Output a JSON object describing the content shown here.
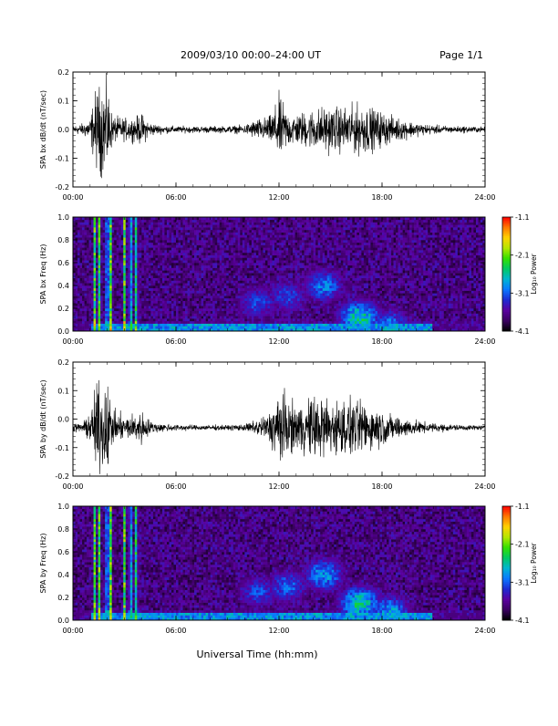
{
  "header": {
    "title": "2009/03/10   00:00–24:00 UT",
    "page_label": "Page 1/1"
  },
  "footer": {
    "xlabel": "Universal Time (hh:mm)"
  },
  "colors": {
    "trace": "#000000",
    "colorscale": [
      "#000000",
      "#3a0060",
      "#5a00a0",
      "#1e2ad2",
      "#0a78ff",
      "#00b4d2",
      "#00c864",
      "#34e000",
      "#b4e600",
      "#ffd200",
      "#ff7800",
      "#ff0000"
    ]
  },
  "chart_data": [
    {
      "type": "line",
      "title": "",
      "ylabel": "SPA bx dB/dt (nT/sec)",
      "xlabel": "",
      "xlim": [
        "00:00",
        "24:00"
      ],
      "ylim": [
        -0.2,
        0.2
      ],
      "x_ticks": [
        "00:00",
        "06:00",
        "12:00",
        "18:00",
        "24:00"
      ],
      "y_ticks": [
        "-0.2",
        "-0.1",
        "0.0",
        "0.1",
        "0.2"
      ],
      "grid": false,
      "series": [
        {
          "x_hours": [
            0.0,
            0.5,
            1.0,
            1.3,
            1.6,
            2.0,
            2.3,
            3.0,
            3.5,
            4.0,
            4.5,
            5.0,
            6.0,
            7.0,
            8.0,
            9.0,
            10.0,
            10.5,
            11.0,
            11.5,
            12.0,
            12.5,
            13.0,
            13.5,
            14.0,
            14.5,
            15.0,
            15.5,
            16.0,
            16.5,
            17.0,
            17.5,
            18.0,
            18.5,
            19.0,
            19.5,
            20.0,
            21.0,
            22.0,
            23.0,
            24.0
          ],
          "amplitude": [
            0.02,
            0.025,
            0.05,
            0.17,
            0.2,
            0.2,
            0.06,
            0.05,
            0.05,
            0.07,
            0.03,
            0.02,
            0.015,
            0.015,
            0.015,
            0.015,
            0.02,
            0.04,
            0.05,
            0.06,
            0.15,
            0.08,
            0.07,
            0.08,
            0.09,
            0.1,
            0.1,
            0.1,
            0.1,
            0.11,
            0.11,
            0.09,
            0.08,
            0.06,
            0.05,
            0.04,
            0.03,
            0.02,
            0.015,
            0.015,
            0.012
          ],
          "baseline": 0.0
        }
      ]
    },
    {
      "type": "heatmap",
      "title": "",
      "ylabel": "SPA bx Freq (Hz)",
      "xlim": [
        "00:00",
        "24:00"
      ],
      "ylim": [
        0.0,
        1.0
      ],
      "x_ticks": [
        "00:00",
        "06:00",
        "12:00",
        "18:00",
        "24:00"
      ],
      "y_ticks": [
        "0.0",
        "0.2",
        "0.4",
        "0.6",
        "0.8",
        "1.0"
      ],
      "colorbar_label": "Log₁₀ Power",
      "colorbar_range": [
        -4.1,
        -1.1
      ],
      "colorbar_ticks": [
        "-1.1",
        "-2.1",
        "-3.1",
        "-4.1"
      ],
      "features": {
        "vertical_bands_hours": [
          1.25,
          1.55,
          2.0,
          2.2,
          3.0,
          3.35,
          3.7
        ],
        "activity_centers": [
          {
            "t_hours": 10.8,
            "f_hz": 0.25,
            "level": -3.2
          },
          {
            "t_hours": 12.5,
            "f_hz": 0.3,
            "level": -3.2
          },
          {
            "t_hours": 14.6,
            "f_hz": 0.4,
            "level": -3.0
          },
          {
            "t_hours": 16.7,
            "f_hz": 0.12,
            "level": -2.6
          },
          {
            "t_hours": 18.5,
            "f_hz": 0.05,
            "level": -3.0
          }
        ]
      }
    },
    {
      "type": "line",
      "title": "",
      "ylabel": "SPA by dB/dt (nT/sec)",
      "xlabel": "",
      "xlim": [
        "00:00",
        "24:00"
      ],
      "ylim": [
        -0.2,
        0.2
      ],
      "x_ticks": [
        "00:00",
        "06:00",
        "12:00",
        "18:00",
        "24:00"
      ],
      "y_ticks": [
        "-0.2",
        "-0.1",
        "0.0",
        "0.1",
        "0.2"
      ],
      "grid": false,
      "series": [
        {
          "x_hours": [
            0.0,
            0.5,
            1.0,
            1.3,
            1.6,
            2.0,
            2.3,
            3.0,
            3.5,
            4.0,
            4.5,
            5.0,
            6.0,
            7.0,
            8.0,
            9.0,
            10.0,
            10.5,
            11.0,
            11.5,
            12.0,
            12.5,
            13.0,
            13.5,
            14.0,
            14.5,
            15.0,
            15.5,
            16.0,
            16.5,
            17.0,
            17.5,
            18.0,
            18.5,
            19.0,
            19.5,
            20.0,
            21.0,
            22.0,
            23.0,
            24.0
          ],
          "amplitude": [
            0.02,
            0.02,
            0.06,
            0.18,
            0.2,
            0.2,
            0.08,
            0.05,
            0.06,
            0.08,
            0.03,
            0.02,
            0.015,
            0.012,
            0.012,
            0.012,
            0.015,
            0.03,
            0.05,
            0.07,
            0.2,
            0.12,
            0.1,
            0.12,
            0.14,
            0.15,
            0.13,
            0.12,
            0.13,
            0.12,
            0.11,
            0.1,
            0.08,
            0.06,
            0.05,
            0.04,
            0.03,
            0.02,
            0.015,
            0.012,
            0.01
          ],
          "baseline": -0.03
        }
      ]
    },
    {
      "type": "heatmap",
      "title": "",
      "ylabel": "SPA by Freq (Hz)",
      "xlim": [
        "00:00",
        "24:00"
      ],
      "ylim": [
        0.0,
        1.0
      ],
      "x_ticks": [
        "00:00",
        "06:00",
        "12:00",
        "18:00",
        "24:00"
      ],
      "y_ticks": [
        "0.0",
        "0.2",
        "0.4",
        "0.6",
        "0.8",
        "1.0"
      ],
      "colorbar_label": "Log₁₀ Power",
      "colorbar_range": [
        -4.1,
        -1.1
      ],
      "colorbar_ticks": [
        "-1.1",
        "-2.1",
        "-3.1",
        "-4.1"
      ],
      "features": {
        "vertical_bands_hours": [
          1.25,
          1.55,
          2.0,
          2.2,
          3.0,
          3.35,
          3.7
        ],
        "activity_centers": [
          {
            "t_hours": 10.8,
            "f_hz": 0.25,
            "level": -3.2
          },
          {
            "t_hours": 12.5,
            "f_hz": 0.3,
            "level": -3.1
          },
          {
            "t_hours": 14.6,
            "f_hz": 0.4,
            "level": -2.9
          },
          {
            "t_hours": 16.7,
            "f_hz": 0.15,
            "level": -2.6
          },
          {
            "t_hours": 18.5,
            "f_hz": 0.08,
            "level": -2.9
          }
        ]
      }
    }
  ]
}
